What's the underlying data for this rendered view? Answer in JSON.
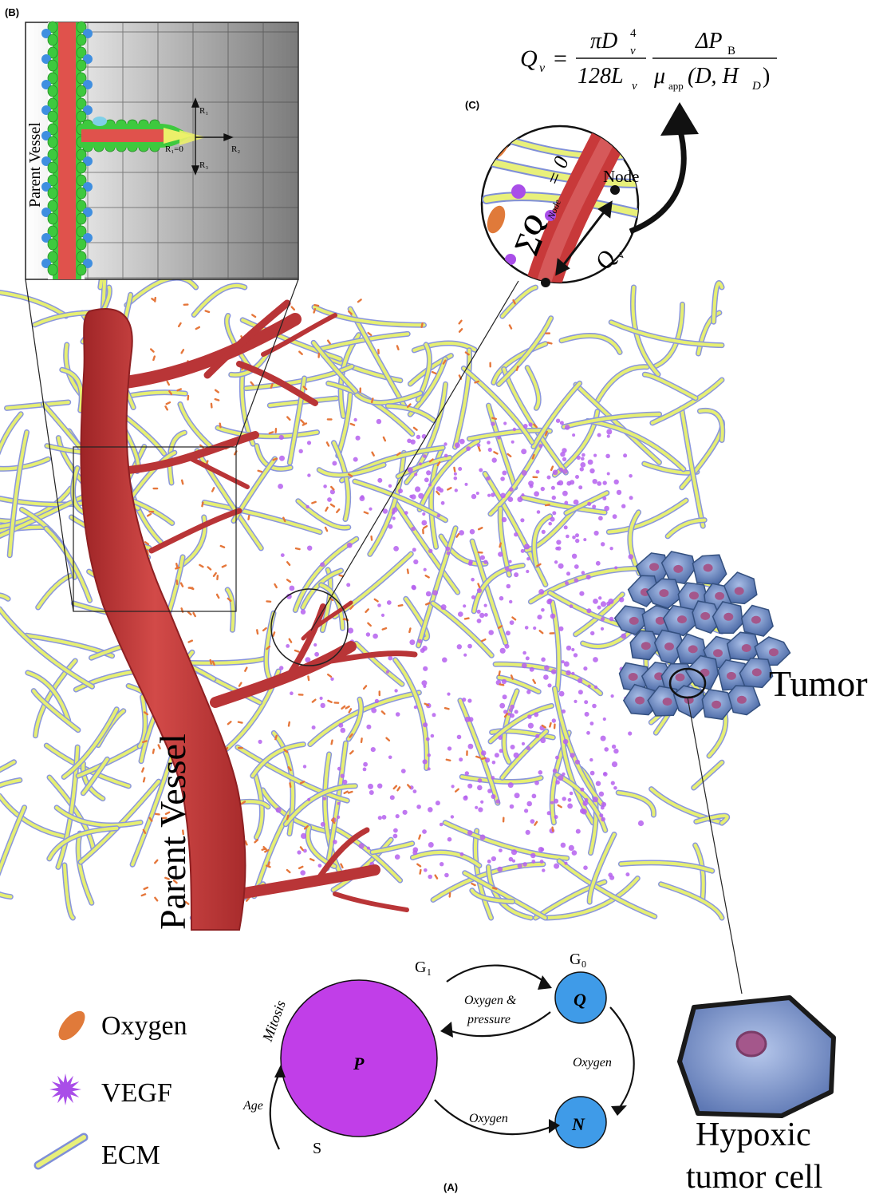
{
  "panels": {
    "a_tag": "(A)",
    "b_tag": "(B)",
    "c_tag": "(C)"
  },
  "labels": {
    "parent_vessel_main": "Parent Vessel",
    "parent_vessel_inset": "Parent Vessel",
    "tumor": "Tumor",
    "hypoxic_line1": "Hypoxic",
    "hypoxic_line2": "tumor cell",
    "node": "Node"
  },
  "inset_b": {
    "r1": "R₁",
    "r2": "R₂",
    "r3": "R₃",
    "r4": "R₄",
    "r0": "R₁=0"
  },
  "equation": {
    "lhs": "Q",
    "lhs_sub": "v",
    "equals": "=",
    "num1": "πD",
    "num1_sup": "4",
    "num1_sub": "v",
    "den1": "128L",
    "den1_sub": "v",
    "num2": "ΔP",
    "num2_sub": "B",
    "den2": "μ",
    "den2_sub": "app",
    "den2_args": "(D, H",
    "den2_args_sub": "D",
    "den2_close": ")"
  },
  "zoom_c": {
    "sum_expr": "∑Q",
    "sum_sub": "Node",
    "sum_eq": "= 0",
    "qv": "Q",
    "qv_sub": "v"
  },
  "legend": {
    "oxygen": "Oxygen",
    "vegf": "VEGF",
    "ecm": "ECM"
  },
  "cell_cycle": {
    "p": "P",
    "q": "Q",
    "n": "N",
    "g1": "G₁",
    "g0": "G₀",
    "s": "S",
    "mitosis": "Mitosis",
    "age": "Age",
    "oxygen_pressure_1": "Oxygen &",
    "oxygen_pressure_2": "pressure",
    "oxygen_right": "Oxygen",
    "oxygen_bottom": "Oxygen"
  },
  "colors": {
    "vessel": "#c8393a",
    "vessel_dark": "#9e2426",
    "ecm_fill": "#e8f07a",
    "ecm_outline": "#7f8fd8",
    "oxygen": "#e07a3a",
    "vegf": "#a94ee8",
    "tumor_cell": "#6e8bc4",
    "tumor_nucleus": "#a4578b",
    "p_state": "#c13ee8",
    "q_state": "#3f9be8",
    "n_state": "#3f9be8"
  }
}
